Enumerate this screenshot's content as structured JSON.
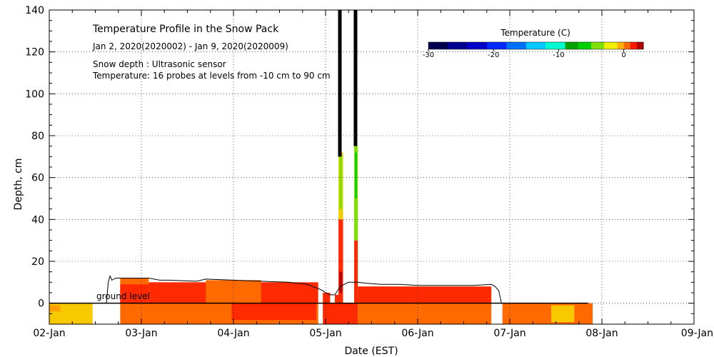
{
  "chart_data": {
    "type": "area",
    "title": "Temperature Profile in the Snow Pack",
    "subtitle": "Jan  2, 2020(2020002) - Jan  9, 2020(2020009)",
    "notes": [
      "Snow depth : Ultrasonic sensor",
      "Temperature: 16 probes at levels from -10 cm to 90 cm"
    ],
    "xlabel": "Date (EST)",
    "ylabel": "Depth, cm",
    "ground_label": "ground level",
    "x_ticks": [
      "02-Jan",
      "03-Jan",
      "04-Jan",
      "05-Jan",
      "06-Jan",
      "07-Jan",
      "08-Jan",
      "09-Jan"
    ],
    "y_ticks": [
      0,
      20,
      40,
      60,
      80,
      100,
      120,
      140
    ],
    "xlim": [
      0,
      7
    ],
    "ylim": [
      -10,
      140
    ],
    "grid": true,
    "colorbar": {
      "title": "Temperature (C)",
      "range": [
        -30,
        3
      ],
      "tick_values": [
        -30,
        -20,
        -10,
        0
      ],
      "tick_labels": [
        "-30",
        "-20",
        "-10",
        "0"
      ],
      "bands": [
        {
          "from": -30,
          "to": -27,
          "color": "#000050"
        },
        {
          "from": -27,
          "to": -24,
          "color": "#000090"
        },
        {
          "from": -24,
          "to": -21,
          "color": "#0000c8"
        },
        {
          "from": -21,
          "to": -18,
          "color": "#0028ff"
        },
        {
          "from": -18,
          "to": -15,
          "color": "#0070ff"
        },
        {
          "from": -15,
          "to": -12,
          "color": "#00c8ff"
        },
        {
          "from": -12,
          "to": -9,
          "color": "#00ffd0"
        },
        {
          "from": -9,
          "to": -7,
          "color": "#00a000"
        },
        {
          "from": -7,
          "to": -5,
          "color": "#00d000"
        },
        {
          "from": -5,
          "to": -3,
          "color": "#80e000"
        },
        {
          "from": -3,
          "to": -1,
          "color": "#f0f000"
        },
        {
          "from": -1,
          "to": 0,
          "color": "#ffb000"
        },
        {
          "from": 0,
          "to": 1,
          "color": "#ff6a00"
        },
        {
          "from": 1,
          "to": 2,
          "color": "#ff1a00"
        },
        {
          "from": 2,
          "to": 3,
          "color": "#b00000"
        }
      ]
    },
    "temperature_regions": [
      {
        "x0": 0.0,
        "x1": 0.47,
        "y0": -10,
        "y1": 0,
        "color": "#f8c800"
      },
      {
        "x0": 0.0,
        "x1": 0.12,
        "y0": -4,
        "y1": -1,
        "color": "#ffa000"
      },
      {
        "x0": 0.77,
        "x1": 2.92,
        "y0": -10,
        "y1": 0,
        "color": "#ff6a00"
      },
      {
        "x0": 1.98,
        "x1": 2.9,
        "y0": -8,
        "y1": 0,
        "color": "#ff2a00"
      },
      {
        "x0": 0.77,
        "x1": 1.08,
        "y0": 0,
        "y1": 12,
        "color": "#ff6a00"
      },
      {
        "x0": 0.77,
        "x1": 1.08,
        "y0": 0,
        "y1": 9,
        "color": "#ff2a00"
      },
      {
        "x0": 1.08,
        "x1": 2.92,
        "y0": 0,
        "y1": 10,
        "color": "#ff2a00"
      },
      {
        "x0": 1.7,
        "x1": 2.3,
        "y0": 0,
        "y1": 11,
        "color": "#ff6a00"
      },
      {
        "x0": 2.97,
        "x1": 3.35,
        "y0": -10,
        "y1": 0,
        "color": "#ff2a00"
      },
      {
        "x0": 2.97,
        "x1": 3.05,
        "y0": 0,
        "y1": 5,
        "color": "#ff2a00"
      },
      {
        "x0": 3.1,
        "x1": 3.16,
        "y0": 0,
        "y1": 4,
        "color": "#ff2a00"
      },
      {
        "x0": 3.35,
        "x1": 4.8,
        "y0": -10,
        "y1": 0,
        "color": "#ff6a00"
      },
      {
        "x0": 3.35,
        "x1": 4.8,
        "y0": 0,
        "y1": 8,
        "color": "#ff2a00"
      },
      {
        "x0": 3.14,
        "x1": 3.19,
        "y0": 0,
        "y1": 40,
        "color": "#ff2a00"
      },
      {
        "x0": 3.14,
        "x1": 3.19,
        "y0": 40,
        "y1": 72,
        "color": "#f0d000"
      },
      {
        "x0": 3.15,
        "x1": 3.18,
        "y0": 45,
        "y1": 70,
        "color": "#80e000"
      },
      {
        "x0": 3.15,
        "x1": 3.18,
        "y0": 5,
        "y1": 15,
        "color": "#b00000"
      },
      {
        "x0": 3.31,
        "x1": 3.35,
        "y0": 0,
        "y1": 30,
        "color": "#ff2a00"
      },
      {
        "x0": 3.31,
        "x1": 3.35,
        "y0": 30,
        "y1": 75,
        "color": "#80e000"
      },
      {
        "x0": 3.32,
        "x1": 3.34,
        "y0": 50,
        "y1": 72,
        "color": "#00d000"
      },
      {
        "x0": 4.92,
        "x1": 5.9,
        "y0": -10,
        "y1": 0,
        "color": "#ff6a00"
      },
      {
        "x0": 5.45,
        "x1": 5.7,
        "y0": -9,
        "y1": -1,
        "color": "#f8c800"
      }
    ],
    "snow_depth_outline": {
      "x": [
        0.62,
        0.64,
        0.66,
        0.68,
        0.72,
        0.77,
        1.08,
        1.2,
        1.3,
        1.6,
        1.7,
        2.0,
        2.3,
        2.6,
        2.8,
        2.92,
        2.97,
        3.0,
        3.05,
        3.1,
        3.16,
        3.2,
        3.25,
        3.28,
        3.35,
        3.45,
        3.6,
        3.8,
        4.0,
        4.2,
        4.4,
        4.6,
        4.8,
        4.84,
        4.88,
        4.91
      ],
      "y": [
        0,
        10,
        13,
        11,
        12,
        12,
        12,
        11,
        11,
        10.5,
        11.5,
        11,
        10.5,
        10,
        9,
        7,
        6,
        5,
        4,
        4,
        8,
        9,
        10,
        10,
        10,
        9.5,
        9,
        9,
        8.5,
        8.5,
        8.5,
        8.5,
        9,
        8,
        6,
        0
      ]
    },
    "snow_depth_spikes": [
      {
        "x": 3.155,
        "y_from": 70,
        "y_to": 140
      },
      {
        "x": 3.325,
        "y_from": 75,
        "y_to": 140
      }
    ]
  }
}
